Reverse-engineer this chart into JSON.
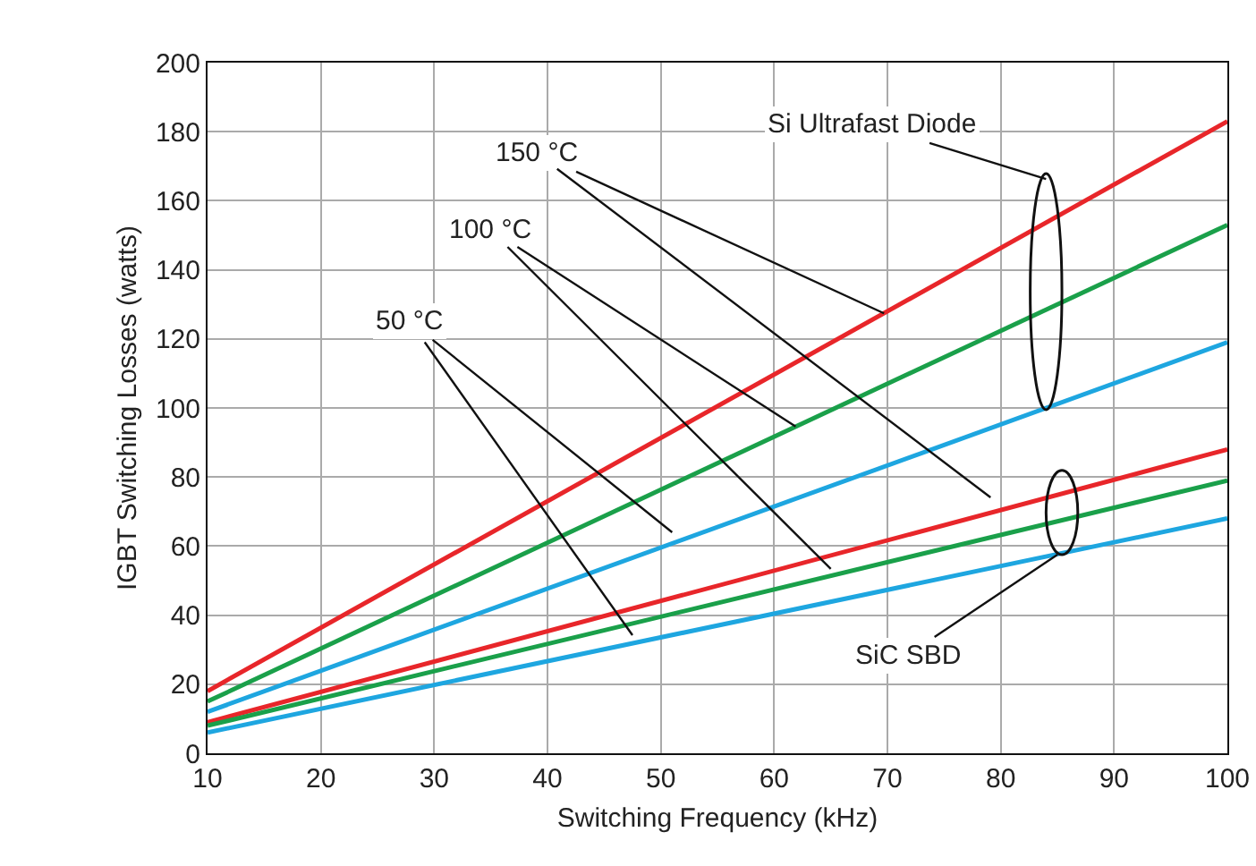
{
  "chart_data": {
    "type": "line",
    "xlabel": "Switching Frequency (kHz)",
    "ylabel": "IGBT Switching Losses (watts)",
    "x": [
      10,
      100
    ],
    "series": [
      {
        "color": "#e8262a",
        "values": [
          18,
          183
        ]
      },
      {
        "color": "#1aa04a",
        "values": [
          15,
          153
        ]
      },
      {
        "color": "#1ea6e0",
        "values": [
          12,
          119
        ]
      },
      {
        "color": "#e8262a",
        "values": [
          9,
          88
        ]
      },
      {
        "color": "#1aa04a",
        "values": [
          8,
          79
        ]
      },
      {
        "color": "#1ea6e0",
        "values": [
          6,
          68
        ]
      }
    ],
    "xlim": [
      10,
      100
    ],
    "xticks": [
      10,
      20,
      30,
      40,
      50,
      60,
      70,
      80,
      90,
      100
    ],
    "ylim": [
      0,
      200
    ],
    "yticks": [
      0,
      20,
      40,
      60,
      80,
      100,
      120,
      140,
      160,
      180,
      200
    ],
    "grid": true,
    "marker": "none",
    "line_style": "solid",
    "annotations": [
      {
        "text": "150 °C",
        "x": 69.7,
        "y": 127.4
      },
      {
        "text": "100 °C",
        "x": 61.9,
        "y": 94.6
      },
      {
        "text": "50 °C",
        "x": 51,
        "y": 64
      },
      "Si Ultrafast Diode",
      {
        "text": "SiC SBD",
        "x": 85,
        "y": 57.5
      }
    ]
  }
}
